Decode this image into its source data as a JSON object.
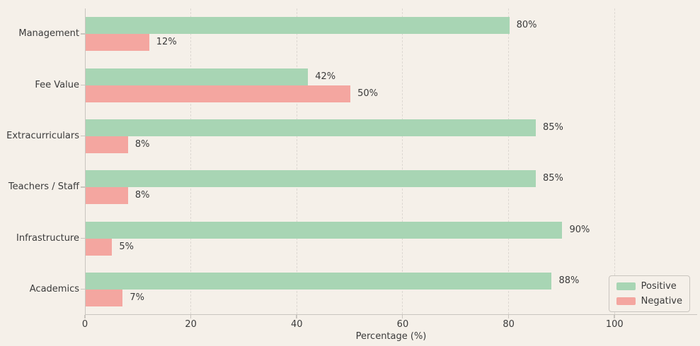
{
  "chart_data": {
    "type": "bar",
    "orientation": "horizontal",
    "title": "",
    "xlabel": "Percentage (%)",
    "ylabel": "",
    "categories": [
      "Management",
      "Fee Value",
      "Extracurriculars",
      "Teachers / Staff",
      "Infrastructure",
      "Academics"
    ],
    "series": [
      {
        "name": "Positive",
        "color": "#a8d5b4",
        "values": [
          80,
          42,
          85,
          85,
          90,
          88
        ]
      },
      {
        "name": "Negative",
        "color": "#f4a6a0",
        "values": [
          12,
          50,
          8,
          8,
          5,
          7
        ]
      }
    ],
    "value_labels": [
      [
        "80%",
        "42%",
        "85%",
        "85%",
        "90%",
        "88%"
      ],
      [
        "12%",
        "50%",
        "8%",
        "8%",
        "5%",
        "7%"
      ]
    ],
    "x_ticks": [
      0,
      20,
      40,
      60,
      80,
      100
    ],
    "x_tick_labels": [
      "0",
      "20",
      "40",
      "60",
      "80",
      "100"
    ],
    "xlim": [
      0,
      115.6
    ],
    "grid": "vertical-dashed",
    "legend_position": "lower-right",
    "legend": {
      "items": [
        {
          "label": "Positive",
          "color": "#a8d5b4"
        },
        {
          "label": "Negative",
          "color": "#f4a6a0"
        }
      ]
    },
    "colors": {
      "background": "#f5f0e9",
      "text": "#3b3b3b",
      "gridline": "#ddd8d2",
      "spine": "#c9c5bf"
    }
  }
}
